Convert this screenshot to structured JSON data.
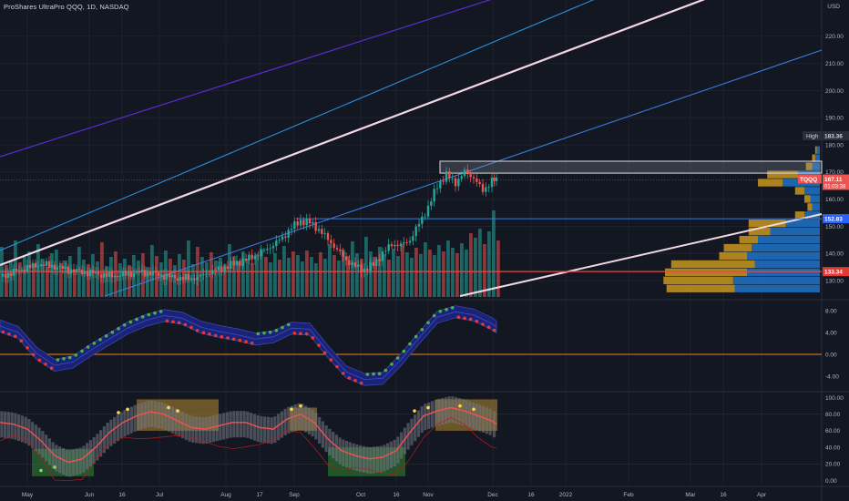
{
  "header": {
    "title": "ProShares UltraPro QQQ, 1D, NASDAQ",
    "currency": "USD"
  },
  "chart_data": {
    "type": "candlestick",
    "symbol": "TQQQ",
    "x_axis": {
      "labels": [
        "May",
        "Jun",
        "16",
        "Jul",
        "Aug",
        "17",
        "Sep",
        "Oct",
        "16",
        "Nov",
        "Dec",
        "16",
        "2022",
        "Feb",
        "Mar",
        "16",
        "Apr"
      ]
    },
    "price_axis": {
      "ticks": [
        220,
        210,
        200,
        190,
        180,
        170,
        160,
        150,
        140,
        130
      ],
      "ylim": [
        124,
        228
      ]
    },
    "price_labels": {
      "high_label": "High",
      "high_value": "183.36",
      "last_symbol": "TQQQ",
      "last_value": "167.11",
      "last_countdown": "01:03:38",
      "level_blue": "152.83",
      "level_red": "133.34"
    },
    "series": [
      {
        "name": "TQQQ close",
        "x": [
          0,
          15,
          30,
          45,
          60,
          75,
          90,
          105,
          120,
          135,
          150,
          165,
          180,
          195,
          210,
          220,
          230,
          240,
          250,
          260,
          270,
          280,
          290,
          300,
          310,
          320,
          330,
          340,
          350,
          360,
          370,
          380,
          390,
          400,
          410,
          420,
          430,
          440,
          450,
          460,
          470,
          480,
          490,
          500,
          510,
          520,
          530,
          540,
          545
        ],
        "values": [
          131.5,
          133.2,
          134.8,
          136,
          135.2,
          134,
          133.2,
          132.6,
          131.8,
          132.2,
          133,
          132.8,
          131.8,
          131,
          130.8,
          131.6,
          133.2,
          134.2,
          135.4,
          136.6,
          137.8,
          139.2,
          141,
          143.2,
          145.8,
          149.6,
          152,
          151.4,
          148.8,
          145.2,
          141.4,
          137.6,
          135.2,
          134,
          136,
          140,
          143.5,
          143,
          145,
          151,
          157,
          165,
          169,
          166,
          170,
          168,
          163,
          167,
          167.1
        ]
      }
    ],
    "volume_axis": {
      "ylim": [
        0,
        100
      ]
    },
    "volume": [
      [
        "0",
        55
      ],
      [
        "5",
        35
      ],
      [
        "10",
        40
      ],
      [
        "15",
        62
      ],
      [
        "20",
        38
      ],
      [
        "25",
        44
      ],
      [
        "30",
        50
      ],
      [
        "35",
        36
      ],
      [
        "40",
        58
      ],
      [
        "45",
        42
      ],
      [
        "50",
        33
      ],
      [
        "55",
        48
      ],
      [
        "60",
        52
      ],
      [
        "65",
        37
      ],
      [
        "70",
        40
      ],
      [
        "75",
        45
      ],
      [
        "80",
        30
      ],
      [
        "85",
        55
      ],
      [
        "90",
        41
      ],
      [
        "95",
        36
      ],
      [
        "100",
        47
      ],
      [
        "105",
        39
      ],
      [
        "110",
        60
      ],
      [
        "115",
        34
      ],
      [
        "120",
        44
      ],
      [
        "125",
        50
      ],
      [
        "130",
        37
      ],
      [
        "135",
        42
      ],
      [
        "140",
        35
      ],
      [
        "145",
        46
      ],
      [
        "150",
        40
      ],
      [
        "155",
        48
      ],
      [
        "160",
        33
      ],
      [
        "165",
        57
      ],
      [
        "170",
        45
      ],
      [
        "175",
        38
      ],
      [
        "180",
        51
      ],
      [
        "185",
        42
      ],
      [
        "190",
        35
      ],
      [
        "195",
        47
      ],
      [
        "200",
        41
      ],
      [
        "205",
        62
      ],
      [
        "210",
        36
      ],
      [
        "215",
        55
      ],
      [
        "220",
        44
      ],
      [
        "225",
        38
      ],
      [
        "230",
        49
      ],
      [
        "235",
        40
      ],
      [
        "240",
        43
      ],
      [
        "245",
        36
      ],
      [
        "250",
        58
      ],
      [
        "255",
        45
      ],
      [
        "260",
        39
      ],
      [
        "265",
        50
      ],
      [
        "270",
        42
      ],
      [
        "275",
        37
      ],
      [
        "280",
        47
      ],
      [
        "285",
        53
      ],
      [
        "290",
        44
      ],
      [
        "295",
        38
      ],
      [
        "300",
        48
      ],
      [
        "305",
        41
      ],
      [
        "310",
        56
      ],
      [
        "315",
        43
      ],
      [
        "320",
        50
      ],
      [
        "325",
        46
      ],
      [
        "330",
        39
      ],
      [
        "335",
        51
      ],
      [
        "340",
        44
      ],
      [
        "345",
        37
      ],
      [
        "350",
        49
      ],
      [
        "355",
        42
      ],
      [
        "360",
        58
      ],
      [
        "365",
        46
      ],
      [
        "370",
        40
      ],
      [
        "375",
        52
      ],
      [
        "380",
        45
      ],
      [
        "385",
        61
      ],
      [
        "390",
        48
      ],
      [
        "395",
        42
      ],
      [
        "400",
        66
      ],
      [
        "405",
        50
      ],
      [
        "410",
        44
      ],
      [
        "415",
        55
      ],
      [
        "420",
        47
      ],
      [
        "425",
        41
      ],
      [
        "430",
        53
      ],
      [
        "435",
        45
      ],
      [
        "440",
        58
      ],
      [
        "445",
        49
      ],
      [
        "450",
        43
      ],
      [
        "455",
        54
      ],
      [
        "460",
        47
      ],
      [
        "465",
        60
      ],
      [
        "470",
        52
      ],
      [
        "475",
        46
      ],
      [
        "480",
        57
      ],
      [
        "485",
        50
      ],
      [
        "490",
        62
      ],
      [
        "495",
        54
      ],
      [
        "500",
        48
      ],
      [
        "505",
        59
      ],
      [
        "510",
        52
      ],
      [
        "515",
        70
      ],
      [
        "520",
        65
      ],
      [
        "525",
        75
      ],
      [
        "530",
        58
      ],
      [
        "535",
        72
      ],
      [
        "540",
        95
      ],
      [
        "545",
        62
      ]
    ],
    "volume_profile": {
      "levels": [
        178,
        175,
        172,
        169,
        166,
        163,
        160,
        157,
        154,
        151,
        148,
        145,
        142,
        139,
        136,
        133,
        130,
        127
      ],
      "up": [
        0.02,
        0.03,
        0.05,
        0.14,
        0.24,
        0.1,
        0.06,
        0.05,
        0.1,
        0.22,
        0.32,
        0.4,
        0.44,
        0.47,
        0.42,
        0.47,
        0.56,
        0.55
      ],
      "down": [
        0.01,
        0.02,
        0.04,
        0.2,
        0.16,
        0.06,
        0.04,
        0.03,
        0.06,
        0.24,
        0.14,
        0.12,
        0.18,
        0.18,
        0.54,
        0.53,
        0.45,
        0.44
      ]
    },
    "oscillator_1": {
      "ticks": [
        8.0,
        4.0,
        0.0,
        -4.0
      ],
      "ylim": [
        -6.5,
        9.5
      ],
      "zero_line": 0.0,
      "x": [
        0,
        20,
        40,
        60,
        80,
        100,
        120,
        140,
        160,
        180,
        200,
        220,
        240,
        260,
        280,
        300,
        320,
        340,
        360,
        380,
        400,
        420,
        440,
        460,
        480,
        500,
        520,
        540,
        545
      ],
      "values": [
        5.2,
        4.0,
        0.2,
        -2.0,
        -1.4,
        0.8,
        2.8,
        4.8,
        6.2,
        7.1,
        6.6,
        5.0,
        4.2,
        3.6,
        2.8,
        3.2,
        4.8,
        4.6,
        0.5,
        -3.2,
        -4.6,
        -4.4,
        -1.0,
        3.0,
        6.8,
        7.8,
        7.2,
        5.6,
        5.0
      ]
    },
    "oscillator_2": {
      "ticks": [
        100.0,
        80.0,
        60.0,
        40.0,
        20.0,
        0.0
      ],
      "ylim": [
        -5,
        105
      ],
      "x": [
        0,
        15,
        30,
        45,
        60,
        75,
        90,
        105,
        120,
        135,
        150,
        165,
        180,
        195,
        210,
        225,
        240,
        255,
        270,
        285,
        300,
        315,
        330,
        345,
        360,
        375,
        390,
        405,
        420,
        435,
        450,
        465,
        480,
        495,
        510,
        525,
        540,
        545
      ],
      "values": [
        70,
        68,
        62,
        48,
        30,
        22,
        26,
        40,
        58,
        70,
        78,
        83,
        80,
        72,
        64,
        62,
        66,
        70,
        70,
        64,
        62,
        74,
        80,
        70,
        50,
        36,
        30,
        26,
        28,
        36,
        58,
        78,
        84,
        88,
        84,
        78,
        72,
        68
      ]
    },
    "overlay_lines": [
      {
        "color": "#5b2bd0"
      },
      {
        "color": "#2a8fd6"
      },
      {
        "color": "#f2d7e3"
      },
      {
        "color": "#3a7ad9"
      },
      {
        "color": "#e24a4a"
      }
    ]
  }
}
